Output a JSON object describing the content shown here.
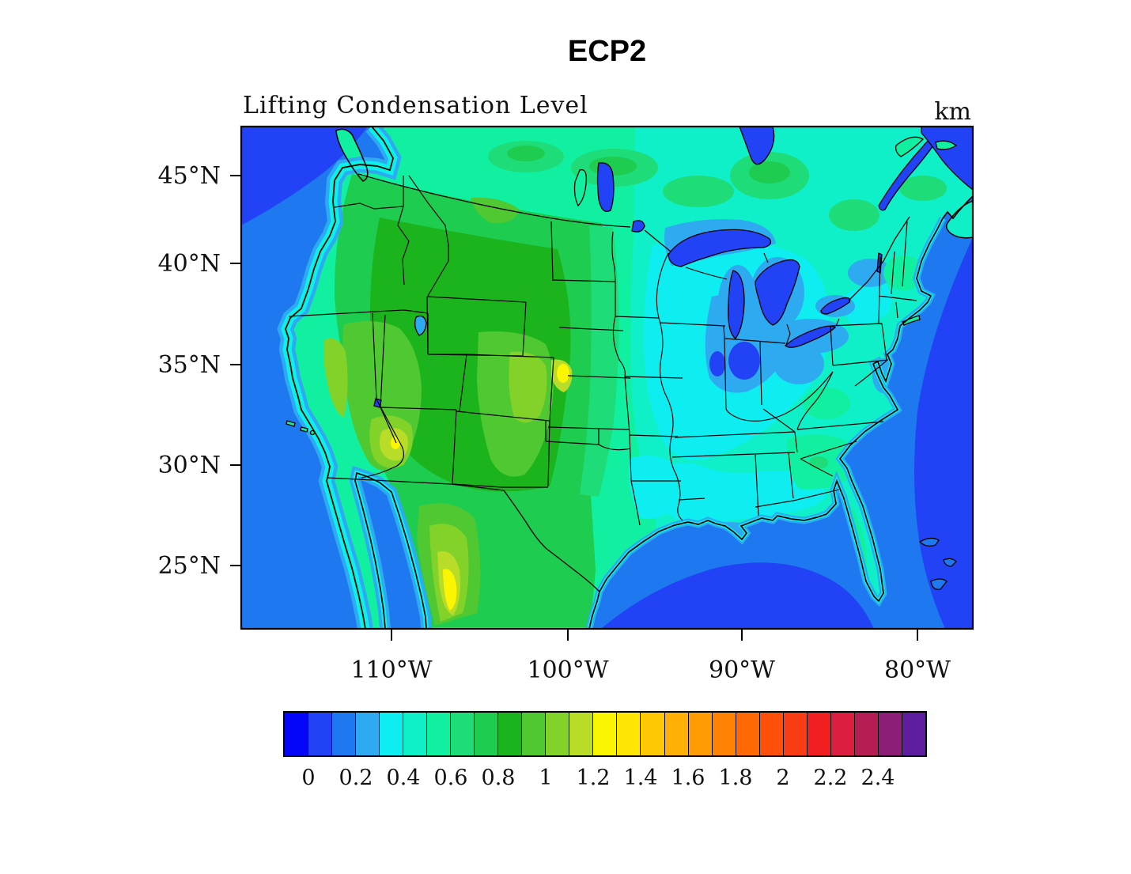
{
  "title": "ECP2",
  "subtitle": "Lifting Condensation Level",
  "units_label": "km",
  "axes": {
    "lat_ticks": [
      "45°N",
      "40°N",
      "35°N",
      "30°N",
      "25°N"
    ],
    "lon_ticks": [
      "110°W",
      "100°W",
      "90°W",
      "80°W"
    ]
  },
  "colorbar": {
    "tick_labels": [
      "0",
      "0.2",
      "0.4",
      "0.6",
      "0.8",
      "1",
      "1.2",
      "1.4",
      "1.6",
      "1.8",
      "2",
      "2.2",
      "2.4"
    ],
    "colors": [
      "#0505FA",
      "#2142F5",
      "#1E78F0",
      "#2EAAF0",
      "#0EEEF0",
      "#0FF0C8",
      "#11F0A0",
      "#1EDC78",
      "#1ECC50",
      "#1CB41C",
      "#50C832",
      "#82D22A",
      "#B9DC28",
      "#FAF500",
      "#FFE605",
      "#FFC805",
      "#FFAF05",
      "#FF9B05",
      "#FF8205",
      "#FF6905",
      "#FF500A",
      "#FA3C14",
      "#F02020",
      "#DC1E41",
      "#B41E55",
      "#8C1E78",
      "#5F1EA0"
    ]
  },
  "chart_data": {
    "type": "heatmap",
    "subtype": "filled-contour-map",
    "title": "ECP2",
    "variable": "Lifting Condensation Level",
    "units": "km",
    "region": "Contiguous United States, southern Canada, northern Mexico",
    "lon_tick_values_degW": [
      110,
      100,
      90,
      80
    ],
    "lat_tick_values_degN": [
      45,
      40,
      35,
      30,
      25
    ],
    "contour_interval_km": 0.1,
    "colorbar_tick_values": [
      0,
      0.2,
      0.4,
      0.6,
      0.8,
      1,
      1.2,
      1.4,
      1.6,
      1.8,
      2,
      2.2,
      2.4
    ],
    "legend_position": "bottom",
    "grid": false,
    "approx_values_km": [
      {
        "region": "Pacific Ocean offshore",
        "value": 0.25
      },
      {
        "region": "Pacific NW ocean corner",
        "value": 0.15
      },
      {
        "region": "Pacific coastal strip",
        "value": 0.4
      },
      {
        "region": "Pacific Northwest interior",
        "value": 0.6
      },
      {
        "region": "Intermountain West / Great Basin",
        "value": 1.0
      },
      {
        "region": "Central Arizona maximum",
        "value": 1.3
      },
      {
        "region": "Eastern Colorado maximum",
        "value": 1.3
      },
      {
        "region": "Northern Mexico (Sierra Madre) maximum",
        "value": 1.4
      },
      {
        "region": "Great Plains transition",
        "value": 0.7
      },
      {
        "region": "Upper Midwest / Great Lakes",
        "value": 0.3
      },
      {
        "region": "Lake Michigan vicinity minimum",
        "value": 0.2
      },
      {
        "region": "Ohio Valley",
        "value": 0.35
      },
      {
        "region": "Southeast US interior",
        "value": 0.55
      },
      {
        "region": "Gulf of Mexico",
        "value": 0.2
      },
      {
        "region": "Western Atlantic",
        "value": 0.15
      },
      {
        "region": "Eastern Canada",
        "value": 0.6
      }
    ]
  }
}
